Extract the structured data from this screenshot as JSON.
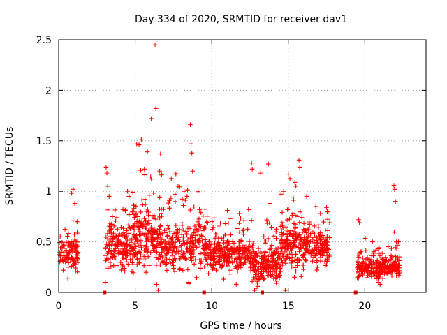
{
  "chart_data": {
    "type": "scatter",
    "title": "Day 334 of 2020, SRMTID for receiver dav1",
    "xlabel": "GPS time / hours",
    "ylabel": "SRMTID / TECUs",
    "xlim": [
      0,
      24
    ],
    "ylim": [
      0,
      2.5
    ],
    "x_ticks": [
      0,
      5,
      10,
      15,
      20
    ],
    "x_tick_labels": [
      "0",
      "5",
      "10",
      "15",
      "20"
    ],
    "y_ticks": [
      0,
      0.5,
      1,
      1.5,
      2,
      2.5
    ],
    "y_tick_labels": [
      "0",
      "0.5",
      "1",
      "1.5",
      "2",
      "2.5"
    ],
    "grid": true,
    "marker": "plus",
    "color": "#ff0000",
    "zero_markers_x": [
      3.0,
      9.5,
      13.3,
      19.4
    ],
    "series": [
      {
        "name": "SRMTID",
        "segments": [
          {
            "start": 0.0,
            "end": 1.3,
            "base": 0.38,
            "spread": 0.18,
            "count": 120,
            "anchors": [
              [
                0.1,
                0.55
              ],
              [
                0.3,
                0.22
              ],
              [
                0.6,
                0.14
              ],
              [
                0.85,
                0.98
              ],
              [
                0.95,
                1.02
              ],
              [
                1.05,
                0.88
              ],
              [
                1.2,
                0.7
              ],
              [
                1.25,
                0.58
              ]
            ]
          },
          {
            "start": 3.0,
            "end": 4.8,
            "base": 0.45,
            "spread": 0.22,
            "count": 170,
            "anchors": [
              [
                3.05,
                0.1
              ],
              [
                3.1,
                1.24
              ],
              [
                3.15,
                1.18
              ],
              [
                3.2,
                1.05
              ],
              [
                3.3,
                0.95
              ],
              [
                3.8,
                0.74
              ],
              [
                4.2,
                0.82
              ],
              [
                4.5,
                1.0
              ],
              [
                4.6,
                0.95
              ]
            ]
          },
          {
            "start": 4.8,
            "end": 6.8,
            "base": 0.55,
            "spread": 0.3,
            "count": 240,
            "anchors": [
              [
                5.1,
                1.47
              ],
              [
                5.25,
                1.46
              ],
              [
                5.4,
                1.51
              ],
              [
                5.6,
                1.22
              ],
              [
                5.8,
                1.39
              ],
              [
                6.05,
                1.72
              ],
              [
                6.3,
                2.45
              ],
              [
                6.35,
                1.82
              ],
              [
                6.5,
                0.02
              ],
              [
                6.4,
                0.08
              ],
              [
                6.6,
                1.2
              ]
            ]
          },
          {
            "start": 6.8,
            "end": 9.6,
            "base": 0.48,
            "spread": 0.28,
            "count": 250,
            "anchors": [
              [
                7.6,
                1.17
              ],
              [
                7.8,
                1.05
              ],
              [
                8.2,
                1.0
              ],
              [
                8.6,
                1.66
              ],
              [
                8.65,
                1.47
              ],
              [
                8.7,
                1.38
              ],
              [
                8.75,
                1.2
              ],
              [
                8.5,
                0.1
              ],
              [
                9.2,
                0.82
              ]
            ]
          },
          {
            "start": 9.6,
            "end": 12.5,
            "base": 0.38,
            "spread": 0.17,
            "count": 290,
            "anchors": [
              [
                10.9,
                0.68
              ],
              [
                11.2,
                0.73
              ],
              [
                11.8,
                0.78
              ],
              [
                12.1,
                0.71
              ],
              [
                12.4,
                0.82
              ],
              [
                11.6,
                0.08
              ]
            ]
          },
          {
            "start": 12.5,
            "end": 14.5,
            "base": 0.28,
            "spread": 0.2,
            "count": 220,
            "anchors": [
              [
                12.6,
                1.28
              ],
              [
                12.65,
                1.22
              ],
              [
                12.8,
                0.02
              ],
              [
                12.9,
                0.04
              ],
              [
                13.0,
                0.06
              ],
              [
                13.2,
                1.18
              ],
              [
                13.7,
                1.27
              ],
              [
                13.8,
                0.88
              ],
              [
                14.2,
                0.6
              ]
            ]
          },
          {
            "start": 14.5,
            "end": 16.5,
            "base": 0.48,
            "spread": 0.25,
            "count": 220,
            "anchors": [
              [
                14.7,
                1.0
              ],
              [
                14.8,
                0.02
              ],
              [
                15.0,
                1.17
              ],
              [
                15.5,
                1.05
              ],
              [
                15.7,
                1.31
              ],
              [
                15.75,
                1.24
              ],
              [
                16.2,
                0.95
              ],
              [
                15.4,
                0.15
              ]
            ]
          },
          {
            "start": 16.5,
            "end": 17.7,
            "base": 0.45,
            "spread": 0.2,
            "count": 120,
            "anchors": [
              [
                16.8,
                0.85
              ],
              [
                17.1,
                0.78
              ],
              [
                17.5,
                0.84
              ],
              [
                17.55,
                0.8
              ],
              [
                16.9,
                0.25
              ]
            ]
          },
          {
            "start": 19.5,
            "end": 22.3,
            "base": 0.25,
            "spread": 0.11,
            "count": 280,
            "anchors": [
              [
                19.6,
                0.72
              ],
              [
                19.65,
                0.69
              ],
              [
                20.5,
                0.5
              ],
              [
                21.9,
                1.06
              ],
              [
                21.95,
                1.02
              ],
              [
                22.0,
                0.9
              ],
              [
                22.2,
                0.5
              ],
              [
                21.0,
                0.08
              ],
              [
                20.9,
                0.1
              ]
            ]
          }
        ]
      }
    ]
  }
}
